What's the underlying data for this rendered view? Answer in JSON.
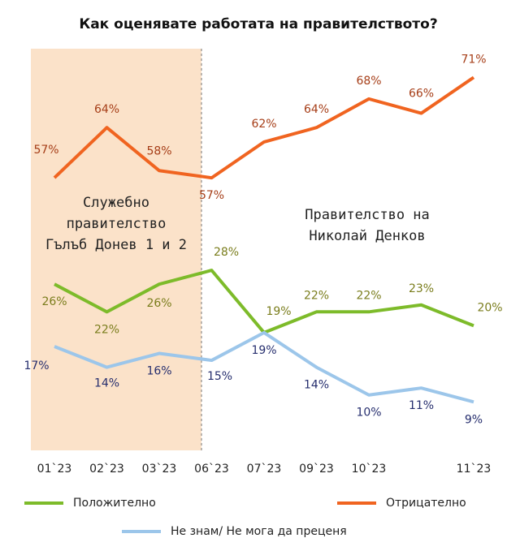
{
  "chart_data": {
    "type": "line",
    "title": "Как оценявате работата на правителството?",
    "categories": [
      "01`23",
      "02`23",
      "03`23",
      "06`23",
      "07`23",
      "09`23",
      "10`23",
      null,
      "11`23"
    ],
    "ylim": [
      2,
      60
    ],
    "y2lim": [
      19,
      75
    ],
    "series": [
      {
        "name": "Положително",
        "color": "#7dbb2a",
        "values": [
          26,
          22,
          26,
          28,
          19,
          22,
          22,
          23,
          20
        ],
        "value_labels": [
          "26%",
          "22%",
          "26%",
          "28%",
          "19%",
          "22%",
          "22%",
          "23%",
          "20%"
        ]
      },
      {
        "name": "Отрицателно",
        "color": "#f06420",
        "axis": "y2",
        "values": [
          57,
          64,
          58,
          57,
          62,
          64,
          68,
          66,
          71
        ],
        "value_labels": [
          "57%",
          "64%",
          "58%",
          "57%",
          "62%",
          "64%",
          "68%",
          "66%",
          "71%"
        ]
      },
      {
        "name": "Не знам/ Не мога да преценя",
        "color": "#9cc6ea",
        "values": [
          17,
          14,
          16,
          15,
          19,
          14,
          10,
          11,
          9
        ],
        "value_labels": [
          "17%",
          "14%",
          "16%",
          "15%",
          "19%",
          "14%",
          "10%",
          "11%",
          "9%"
        ]
      }
    ],
    "annotations": [
      {
        "lines": [
          "Служебно",
          "правителство",
          "Гълъб Донев 1 и 2"
        ]
      },
      {
        "lines": [
          "Правителство на",
          "Николай Денков"
        ]
      }
    ]
  }
}
